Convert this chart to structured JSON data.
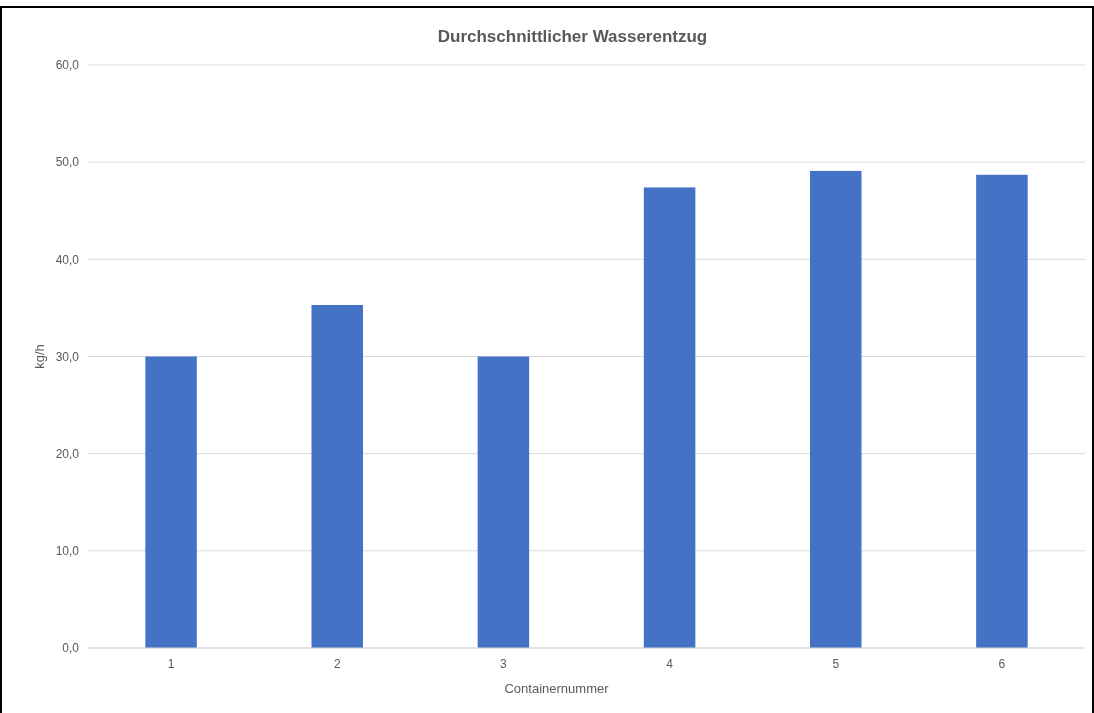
{
  "chart_data": {
    "type": "bar",
    "title": "Durchschnittlicher Wasserentzug",
    "xlabel": "Containernummer",
    "ylabel": "kg/h",
    "categories": [
      "1",
      "2",
      "3",
      "4",
      "5",
      "6"
    ],
    "values": [
      30.0,
      35.3,
      30.0,
      47.4,
      49.1,
      48.7
    ],
    "color": "#4472c4",
    "ylim": [
      0,
      60
    ],
    "yticks": [
      {
        "value": 0,
        "label": "0,0"
      },
      {
        "value": 10,
        "label": "10,0"
      },
      {
        "value": 20,
        "label": "20,0"
      },
      {
        "value": 30,
        "label": "30,0"
      },
      {
        "value": 40,
        "label": "40,0"
      },
      {
        "value": 50,
        "label": "50,0"
      },
      {
        "value": 60,
        "label": "60,0"
      }
    ],
    "grid": "y"
  }
}
